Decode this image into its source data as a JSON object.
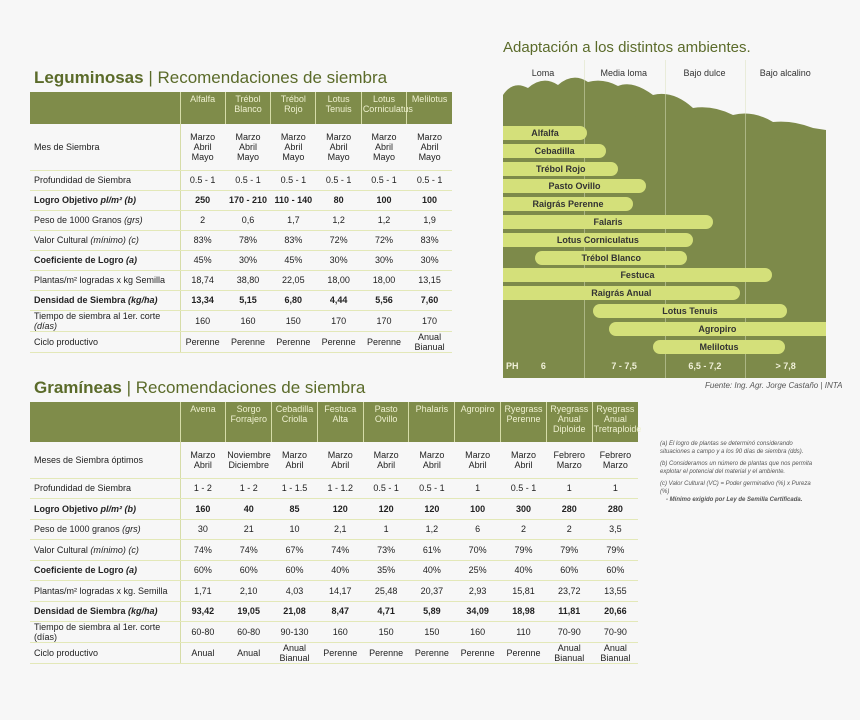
{
  "leguminosas": {
    "title_bold": "Leguminosas",
    "title_rest": " | Recomendaciones de siembra",
    "columns": [
      "Alfalfa",
      "Trébol\nBlanco",
      "Trébol\nRojo",
      "Lotus\nTenuis",
      "Lotus\nCorniculatus",
      "Melilotus"
    ],
    "rows": [
      {
        "label": "Mes de Siembra",
        "unit": "",
        "bold_label": false,
        "bold_values": false,
        "values": [
          "Marzo\nAbril\nMayo",
          "Marzo\nAbril\nMayo",
          "Marzo\nAbril\nMayo",
          "Marzo\nAbril\nMayo",
          "Marzo\nAbril\nMayo",
          "Marzo\nAbril\nMayo"
        ]
      },
      {
        "label": "Profundidad de Siembra",
        "unit": "",
        "bold_label": false,
        "bold_values": false,
        "values": [
          "0.5 - 1",
          "0.5 - 1",
          "0.5 - 1",
          "0.5 - 1",
          "0.5 - 1",
          "0.5 - 1"
        ]
      },
      {
        "label": "Logro Objetivo",
        "unit": " pl/m² (b)",
        "bold_label": true,
        "bold_values": true,
        "values": [
          "250",
          "170 - 210",
          "110 - 140",
          "80",
          "100",
          "100"
        ]
      },
      {
        "label": "Peso de 1000 Granos",
        "unit": " (grs)",
        "bold_label": false,
        "bold_values": false,
        "values": [
          "2",
          "0,6",
          "1,7",
          "1,2",
          "1,2",
          "1,9"
        ]
      },
      {
        "label": "Valor Cultural",
        "unit": " (mínimo) (c)",
        "bold_label": false,
        "bold_values": false,
        "values": [
          "83%",
          "78%",
          "83%",
          "72%",
          "72%",
          "83%"
        ]
      },
      {
        "label": "Coeficiente de Logro",
        "unit": " (a)",
        "bold_label": true,
        "bold_values": false,
        "values": [
          "45%",
          "30%",
          "45%",
          "30%",
          "30%",
          "30%"
        ]
      },
      {
        "label": "Plantas/m² logradas x kg Semilla",
        "unit": "",
        "bold_label": false,
        "bold_values": false,
        "values": [
          "18,74",
          "38,80",
          "22,05",
          "18,00",
          "18,00",
          "13,15"
        ]
      },
      {
        "label": "Densidad de Siembra",
        "unit": " (kg/ha)",
        "bold_label": true,
        "bold_values": true,
        "values": [
          "13,34",
          "5,15",
          "6,80",
          "4,44",
          "5,56",
          "7,60"
        ]
      },
      {
        "label": "Tiempo de siembra al 1er. corte",
        "unit": " (días)",
        "bold_label": false,
        "bold_values": false,
        "values": [
          "160",
          "160",
          "150",
          "170",
          "170",
          "170"
        ]
      },
      {
        "label": "Ciclo productivo",
        "unit": "",
        "bold_label": false,
        "bold_values": false,
        "values": [
          "Perenne",
          "Perenne",
          "Perenne",
          "Perenne",
          "Perenne",
          "Anual\nBianual"
        ]
      }
    ]
  },
  "gramineas": {
    "title_bold": "Gramíneas",
    "title_rest": " | Recomendaciones de siembra",
    "columns": [
      "Avena",
      "Sorgo\nForrajero",
      "Cebadilla\nCriolla",
      "Festuca\nAlta",
      "Pasto\nOvillo",
      "Phalaris",
      "Agropiro",
      "Ryegrass\nPerenne",
      "Ryegrass\nAnual\nDiploide",
      "Ryegrass\nAnual\nTretraploide"
    ],
    "rows": [
      {
        "label": "Meses de Siembra óptimos",
        "unit": "",
        "bold_label": false,
        "bold_values": false,
        "values": [
          "Marzo\nAbril",
          "Noviembre\nDiciembre",
          "Marzo\nAbril",
          "Marzo\nAbril",
          "Marzo\nAbril",
          "Marzo\nAbril",
          "Marzo\nAbril",
          "Marzo\nAbril",
          "Febrero\nMarzo",
          "Febrero\nMarzo"
        ]
      },
      {
        "label": "Profundidad de Siembra",
        "unit": "",
        "bold_label": false,
        "bold_values": false,
        "values": [
          "1 - 2",
          "1 - 2",
          "1 - 1.5",
          "1 - 1.2",
          "0.5 - 1",
          "0.5 - 1",
          "1",
          "0.5 - 1",
          "1",
          "1"
        ]
      },
      {
        "label": "Logro Objetivo",
        "unit": " pl/m² (b)",
        "bold_label": true,
        "bold_values": true,
        "values": [
          "160",
          "40",
          "85",
          "120",
          "120",
          "120",
          "100",
          "300",
          "280",
          "280"
        ]
      },
      {
        "label": "Peso de 1000 granos",
        "unit": " (grs)",
        "bold_label": false,
        "bold_values": false,
        "values": [
          "30",
          "21",
          "10",
          "2,1",
          "1",
          "1,2",
          "6",
          "2",
          "2",
          "3,5"
        ]
      },
      {
        "label": "Valor Cultural",
        "unit": " (mínimo) (c)",
        "bold_label": false,
        "bold_values": false,
        "values": [
          "74%",
          "74%",
          "67%",
          "74%",
          "73%",
          "61%",
          "70%",
          "79%",
          "79%",
          "79%"
        ]
      },
      {
        "label": "Coeficiente de Logro",
        "unit": " (a)",
        "bold_label": true,
        "bold_values": false,
        "values": [
          "60%",
          "60%",
          "60%",
          "40%",
          "35%",
          "40%",
          "25%",
          "40%",
          "60%",
          "60%"
        ]
      },
      {
        "label": "Plantas/m² logradas x kg. Semilla",
        "unit": "",
        "bold_label": false,
        "bold_values": false,
        "values": [
          "1,71",
          "2,10",
          "4,03",
          "14,17",
          "25,48",
          "20,37",
          "2,93",
          "15,81",
          "23,72",
          "13,55"
        ]
      },
      {
        "label": "Densidad de Siembra",
        "unit": " (kg/ha)",
        "bold_label": true,
        "bold_values": true,
        "values": [
          "93,42",
          "19,05",
          "21,08",
          "8,47",
          "4,71",
          "5,89",
          "34,09",
          "18,98",
          "11,81",
          "20,66"
        ]
      },
      {
        "label": "Tiempo de siembra al 1er. corte (días)",
        "unit": "",
        "bold_label": false,
        "bold_values": false,
        "values": [
          "60-80",
          "60-80",
          "90-130",
          "160",
          "150",
          "150",
          "160",
          "110",
          "70-90",
          "70-90"
        ]
      },
      {
        "label": "Ciclo productivo",
        "unit": "",
        "bold_label": false,
        "bold_values": false,
        "values": [
          "Anual",
          "Anual",
          "Anual\nBianual",
          "Perenne",
          "Perenne",
          "Perenne",
          "Perenne",
          "Perenne",
          "Anual\nBianual",
          "Anual\nBianual"
        ]
      }
    ]
  },
  "chart_data": {
    "type": "bar",
    "orientation": "horizontal-range",
    "title": "Adaptación a los distintos ambientes.",
    "zones": [
      "Loma",
      "Media loma",
      "Bajo dulce",
      "Bajo alcalino"
    ],
    "ph_label": "PH",
    "ph_values": [
      "6",
      "7 - 7,5",
      "6,5 - 7,2",
      "> 7,8"
    ],
    "x_units": "zone index (0 = start of Loma, 4 = end of Bajo alcalino)",
    "xlim": [
      0,
      4
    ],
    "series": [
      {
        "name": "Alfalfa",
        "start": 0,
        "end": 1.04
      },
      {
        "name": "Cebadilla",
        "start": 0,
        "end": 1.28
      },
      {
        "name": "Trébol Rojo",
        "start": 0,
        "end": 1.43
      },
      {
        "name": "Pasto Ovillo",
        "start": 0,
        "end": 1.77
      },
      {
        "name": "Raigrás Perenne",
        "start": 0,
        "end": 1.61
      },
      {
        "name": "Falaris",
        "start": 0,
        "end": 2.6
      },
      {
        "name": "Lotus Corniculatus",
        "start": 0,
        "end": 2.35
      },
      {
        "name": "Trébol Blanco",
        "start": 0.4,
        "end": 2.28
      },
      {
        "name": "Festuca",
        "start": 0,
        "end": 3.33
      },
      {
        "name": "Raigrás Anual",
        "start": 0,
        "end": 2.93
      },
      {
        "name": "Lotus Tenuis",
        "start": 1.11,
        "end": 3.52
      },
      {
        "name": "Agropiro",
        "start": 1.31,
        "end": 4.0
      },
      {
        "name": "Melilotus",
        "start": 1.86,
        "end": 3.49
      }
    ],
    "colors": {
      "background": "#7d8a4a",
      "bar": "#d4e07a"
    }
  },
  "source": "Fuente:  Ing. Agr. Jorge Castaño | INTA",
  "notes": [
    "(a) El logro de plantas se determinó considerando situaciones a campo y a los 90 días de siembra (dds).",
    "(b) Consideramos un número de plantas que nos permita explotar el potencial del material y el ambiente.",
    "(c)  Valor Cultural (VC) = Poder germinativo (%) x Pureza (%)",
    "-  Mínimo exigido por Ley de Semilla Certificada."
  ]
}
